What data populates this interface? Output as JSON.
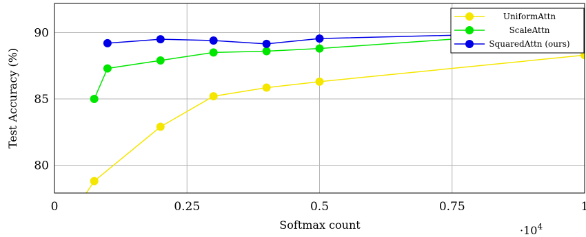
{
  "chart_data": {
    "type": "line",
    "title": "",
    "xlabel": "Softmax count",
    "ylabel": "Test Accuracy (%)",
    "x_multiplier_label": "·10",
    "x_multiplier_exponent": "4",
    "xlim": [
      0,
      1
    ],
    "ylim": [
      77.9,
      92.2
    ],
    "x_ticks": [
      0,
      0.25,
      0.5,
      0.75,
      1
    ],
    "x_tick_labels": [
      "0",
      "0.25",
      "0.5",
      "0.75",
      "1"
    ],
    "y_ticks": [
      80,
      85,
      90
    ],
    "y_tick_labels": [
      "80",
      "85",
      "90"
    ],
    "grid": true,
    "legend_position": "top-right",
    "series": [
      {
        "name": "UniformAttn",
        "color": "#f5e600",
        "points": [
          [
            0.05,
            77.3
          ],
          [
            0.075,
            78.8
          ],
          [
            0.2,
            82.9
          ],
          [
            0.3,
            85.2
          ],
          [
            0.4,
            85.85
          ],
          [
            0.5,
            86.3
          ],
          [
            1.0,
            88.3
          ]
        ]
      },
      {
        "name": "ScaleAttn",
        "color": "#00e600",
        "points": [
          [
            0.075,
            85.0
          ],
          [
            0.1,
            87.3
          ],
          [
            0.2,
            87.9
          ],
          [
            0.3,
            88.5
          ],
          [
            0.4,
            88.6
          ],
          [
            0.5,
            88.8
          ],
          [
            1.0,
            90.2
          ]
        ]
      },
      {
        "name": "SquaredAttn (ours)",
        "color": "#0000e6",
        "points": [
          [
            0.1,
            89.2
          ],
          [
            0.2,
            89.5
          ],
          [
            0.3,
            89.4
          ],
          [
            0.4,
            89.15
          ],
          [
            0.5,
            89.55
          ],
          [
            1.0,
            90.05
          ]
        ]
      }
    ]
  }
}
